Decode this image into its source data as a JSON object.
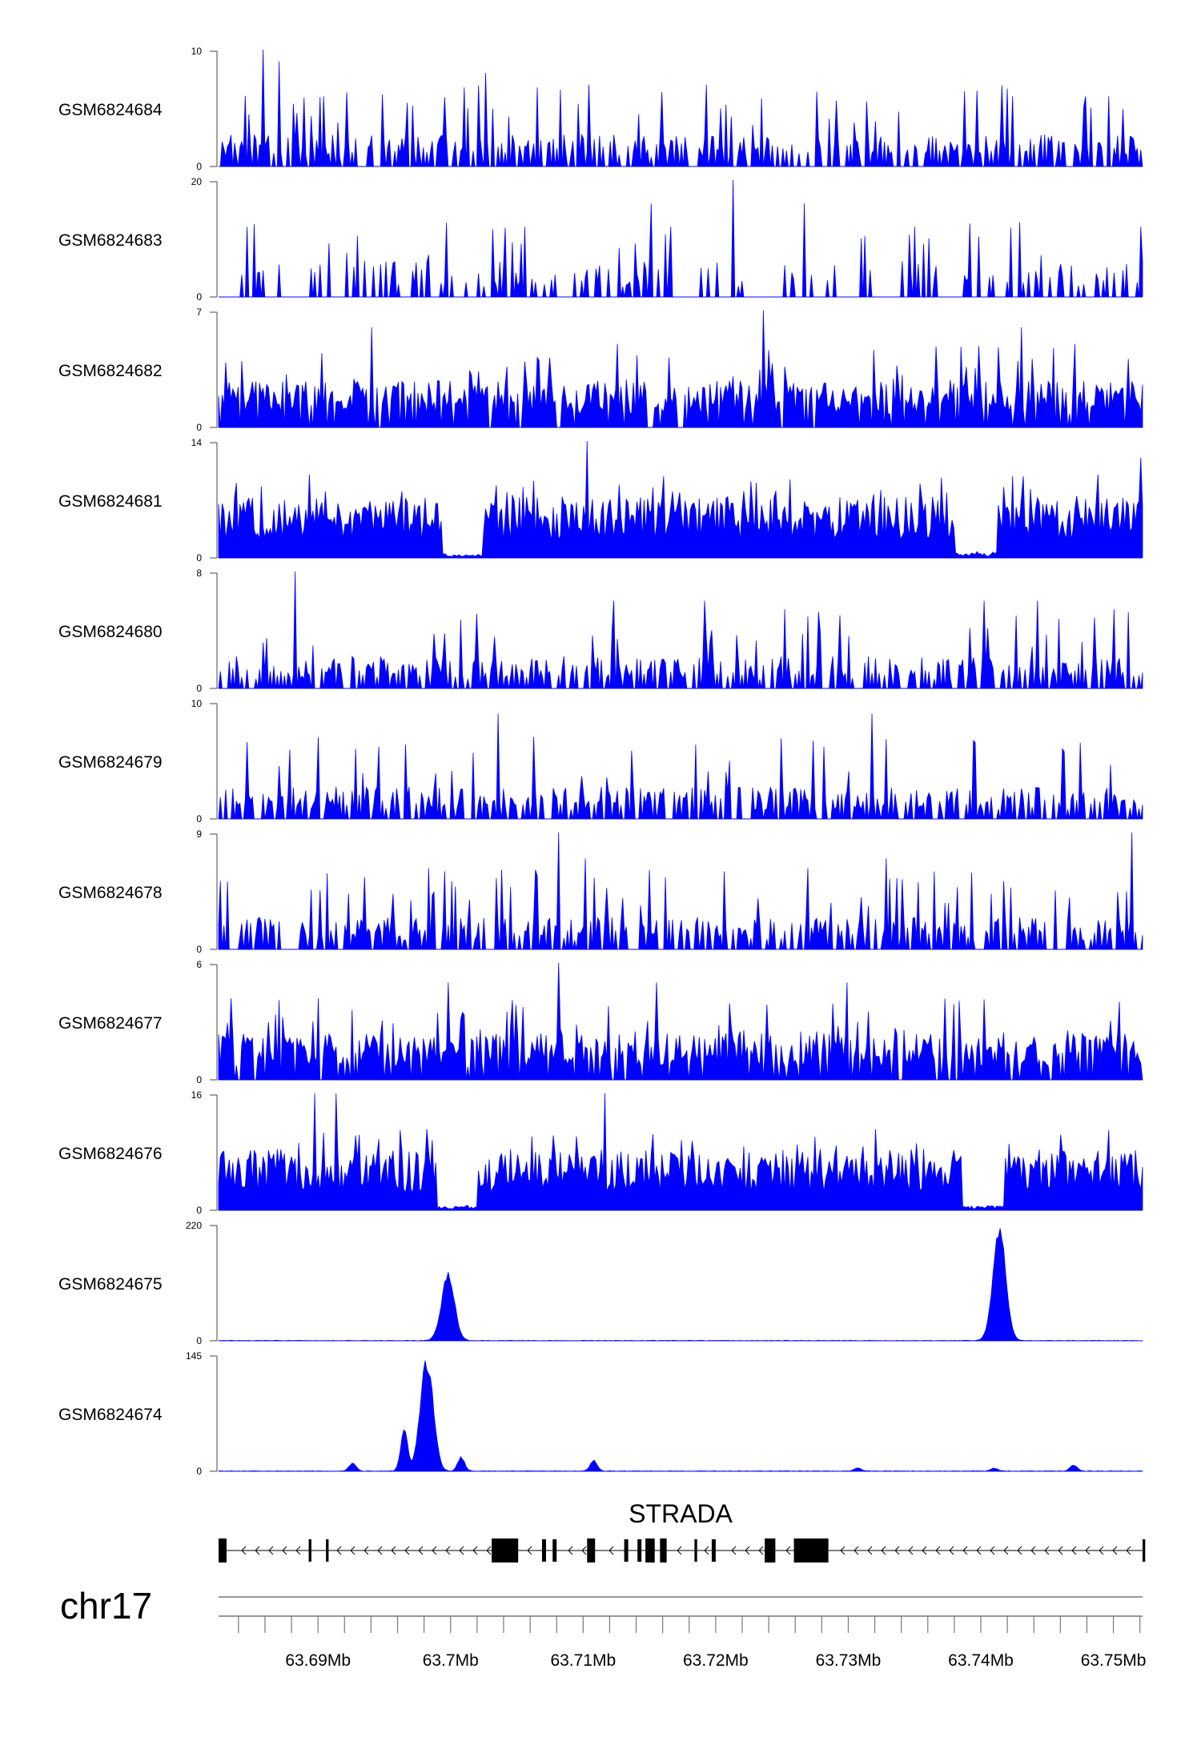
{
  "chart_data": {
    "type": "area",
    "title": "",
    "chromosome": "chr17",
    "x_unit": "Mb",
    "xlim": [
      63.6825,
      63.7522
    ],
    "x_ticks": [
      63.69,
      63.7,
      63.71,
      63.72,
      63.73,
      63.74,
      63.75
    ],
    "x_tick_labels": [
      "63.69Mb",
      "63.7Mb",
      "63.71Mb",
      "63.72Mb",
      "63.73Mb",
      "63.74Mb",
      "63.75Mb"
    ],
    "color": "#0000ff",
    "tracks": [
      {
        "name": "GSM6824684",
        "ymin_label": "0",
        "ymax_label": "10",
        "ymax": 10,
        "profile": "sparse",
        "peaks": [
          [
            63.6858,
            10
          ],
          [
            63.687,
            9
          ],
          [
            63.7027,
            8
          ],
          [
            63.7104,
            7
          ],
          [
            63.7193,
            7
          ],
          [
            63.7424,
            6
          ],
          [
            63.7479,
            6
          ],
          [
            63.7497,
            6
          ]
        ]
      },
      {
        "name": "GSM6824683",
        "ymin_label": "0",
        "ymax_label": "20",
        "ymax": 20,
        "profile": "very-sparse",
        "peaks": [
          [
            63.6847,
            12
          ],
          [
            63.7151,
            16
          ],
          [
            63.7213,
            20
          ],
          [
            63.7267,
            16
          ],
          [
            63.735,
            12
          ],
          [
            63.752,
            12
          ]
        ]
      },
      {
        "name": "GSM6824682",
        "ymin_label": "0",
        "ymax_label": "7",
        "ymax": 7,
        "profile": "medium",
        "peaks": [
          [
            63.6941,
            6
          ],
          [
            63.7126,
            5
          ],
          [
            63.7236,
            7
          ],
          [
            63.7431,
            6
          ],
          [
            63.7471,
            5
          ]
        ]
      },
      {
        "name": "GSM6824681",
        "ymin_label": "0",
        "ymax_label": "14",
        "ymax": 14,
        "profile": "dense",
        "peaks": [
          [
            63.6893,
            10
          ],
          [
            63.7103,
            14
          ],
          [
            63.723,
            9
          ],
          [
            63.7488,
            10
          ],
          [
            63.752,
            12
          ]
        ],
        "dips": [
          [
            63.7009,
            0.3
          ],
          [
            63.7396,
            0.4
          ]
        ]
      },
      {
        "name": "GSM6824680",
        "ymin_label": "0",
        "ymax_label": "8",
        "ymax": 8,
        "profile": "sparse",
        "peaks": [
          [
            63.6883,
            8
          ],
          [
            63.7123,
            6
          ],
          [
            63.7191,
            6
          ],
          [
            63.7294,
            5
          ],
          [
            63.7403,
            6
          ],
          [
            63.7443,
            6
          ]
        ]
      },
      {
        "name": "GSM6824679",
        "ymin_label": "0",
        "ymax_label": "10",
        "ymax": 10,
        "profile": "sparse",
        "peaks": [
          [
            63.6928,
            6
          ],
          [
            63.7036,
            9
          ],
          [
            63.7063,
            7
          ],
          [
            63.7318,
            9
          ],
          [
            63.7462,
            6
          ]
        ]
      },
      {
        "name": "GSM6824678",
        "ymin_label": "0",
        "ymax_label": "9",
        "ymax": 9,
        "profile": "sparse",
        "peaks": [
          [
            63.6995,
            6
          ],
          [
            63.7082,
            9
          ],
          [
            63.7101,
            7
          ],
          [
            63.7206,
            6
          ],
          [
            63.7328,
            7
          ],
          [
            63.7365,
            6
          ],
          [
            63.7514,
            9
          ]
        ]
      },
      {
        "name": "GSM6824677",
        "ymin_label": "0",
        "ymax_label": "6",
        "ymax": 6,
        "profile": "medium",
        "peaks": [
          [
            63.6998,
            5
          ],
          [
            63.7081,
            6
          ],
          [
            63.7155,
            5
          ],
          [
            63.7299,
            5
          ],
          [
            63.7505,
            4
          ]
        ]
      },
      {
        "name": "GSM6824676",
        "ymin_label": "0",
        "ymax_label": "16",
        "ymax": 16,
        "profile": "dense",
        "peaks": [
          [
            63.6898,
            16
          ],
          [
            63.6913,
            16
          ],
          [
            63.7116,
            16
          ],
          [
            63.7261,
            9
          ],
          [
            63.7497,
            11
          ]
        ],
        "dips": [
          [
            63.7005,
            0.3
          ],
          [
            63.7402,
            0.4
          ]
        ]
      },
      {
        "name": "GSM6824675",
        "ymin_label": "0",
        "ymax_label": "220",
        "ymax": 220,
        "profile": "flat",
        "peaks": [
          [
            63.6998,
            130
          ],
          [
            63.7414,
            220
          ]
        ]
      },
      {
        "name": "GSM6824674",
        "ymin_label": "0",
        "ymax_label": "145",
        "ymax": 145,
        "profile": "flat",
        "peaks": [
          [
            63.6982,
            145
          ],
          [
            63.6965,
            55
          ],
          [
            63.6926,
            10
          ],
          [
            63.7008,
            18
          ],
          [
            63.7108,
            14
          ],
          [
            63.7307,
            4
          ],
          [
            63.741,
            4
          ],
          [
            63.747,
            8
          ]
        ]
      }
    ],
    "gene": {
      "name": "STRADA",
      "strand": "-",
      "start": 63.6825,
      "end": 63.7522,
      "exons": [
        [
          63.6825,
          63.6831
        ],
        [
          63.6893,
          63.6895
        ],
        [
          63.6906,
          63.6908
        ],
        [
          63.7031,
          63.7051
        ],
        [
          63.7069,
          63.7072
        ],
        [
          63.7077,
          63.708
        ],
        [
          63.7103,
          63.7109
        ],
        [
          63.7131,
          63.7134
        ],
        [
          63.7141,
          63.7144
        ],
        [
          63.7147,
          63.7154
        ],
        [
          63.7158,
          63.7163
        ],
        [
          63.7184,
          63.7186
        ],
        [
          63.7197,
          63.72
        ],
        [
          63.7237,
          63.7245
        ],
        [
          63.7259,
          63.7285
        ],
        [
          63.7522,
          63.7524
        ]
      ]
    }
  }
}
